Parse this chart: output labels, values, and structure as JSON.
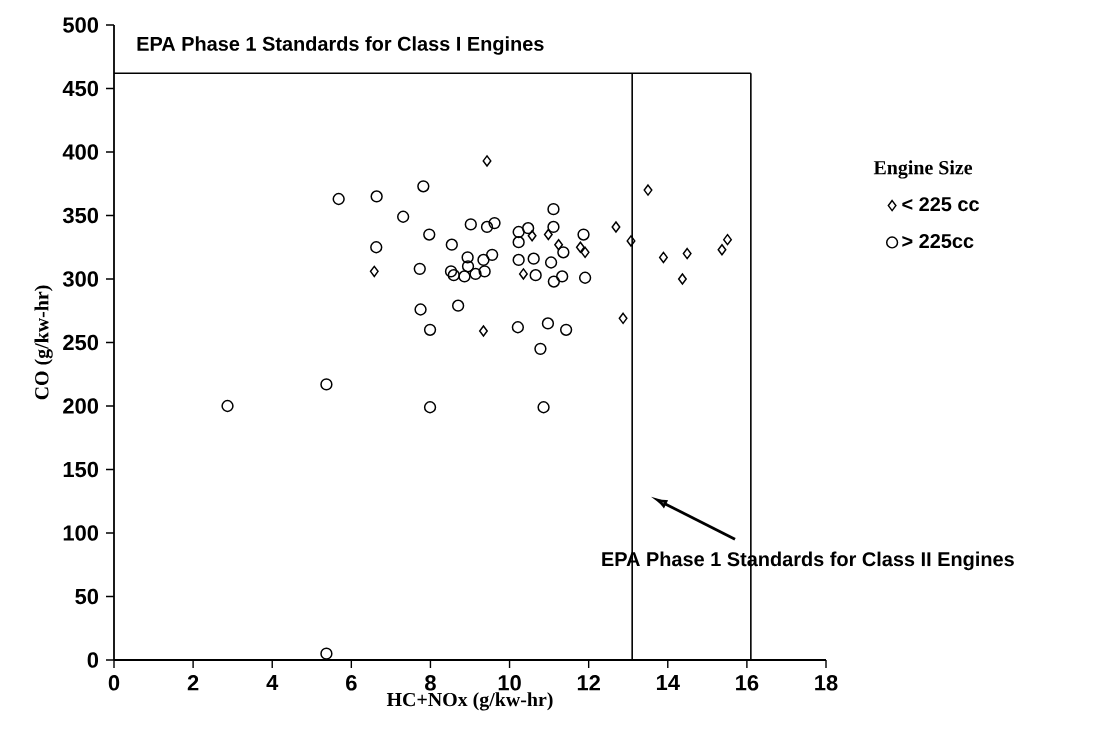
{
  "chart_data": {
    "type": "scatter",
    "xlabel": "HC+NOx (g/kw-hr)",
    "ylabel": "CO (g/kw-hr)",
    "legend_title": "Engine Size",
    "legend": "right",
    "xlim": [
      0,
      18
    ],
    "xticks": [
      0,
      2,
      4,
      6,
      8,
      10,
      12,
      14,
      16,
      18
    ],
    "ylim": [
      0,
      500
    ],
    "yticks": [
      0,
      50,
      100,
      150,
      200,
      250,
      300,
      350,
      400,
      450,
      500
    ],
    "grid": false,
    "series": [
      {
        "name": "< 225 cc",
        "color": "#000000",
        "marker": "diamond",
        "x": [
          9.43,
          13.5,
          12.69,
          13.07,
          13.89,
          14.49,
          14.37,
          15.37,
          15.51,
          12.87,
          6.58,
          9.34,
          10.57,
          10.98,
          11.24,
          10.35,
          11.79,
          11.91
        ],
        "values": [
          393,
          370,
          341,
          330,
          317,
          320,
          300,
          323,
          331,
          269,
          306,
          259,
          334,
          335,
          327,
          304,
          325,
          321
        ]
      },
      {
        "name": "> 225cc",
        "color": "#000000",
        "marker": "circle",
        "x": [
          2.87,
          5.37,
          5.37,
          5.68,
          6.64,
          6.63,
          7.31,
          7.82,
          7.97,
          7.73,
          7.75,
          7.99,
          7.99,
          8.54,
          8.7,
          8.52,
          8.59,
          8.86,
          8.94,
          8.95,
          9.14,
          9.37,
          9.34,
          9.56,
          9.02,
          9.43,
          9.62,
          10.23,
          10.23,
          10.47,
          10.23,
          10.61,
          10.66,
          10.21,
          10.97,
          10.78,
          10.86,
          11.11,
          11.11,
          11.05,
          11.12,
          11.33,
          11.36,
          11.43,
          11.87,
          11.91
        ],
        "values": [
          200,
          217,
          5,
          363,
          365,
          325,
          349,
          373,
          335,
          308,
          276,
          260,
          199,
          327,
          279,
          306,
          303,
          302,
          317,
          310,
          304,
          306,
          315,
          319,
          343,
          341,
          344,
          337,
          329,
          340,
          315,
          316,
          303,
          262,
          265,
          245,
          199,
          355,
          341,
          313,
          298,
          302,
          321,
          260,
          335,
          301
        ]
      }
    ],
    "ref_lines": [
      {
        "axis": "y",
        "value": 462,
        "label": "EPA Phase 1 Standards for Class I Engines"
      },
      {
        "axis": "x",
        "value": 16.1
      },
      {
        "axis": "x",
        "value": 13.1,
        "label": "EPA Phase 1 Standards for Class II Engines"
      }
    ]
  }
}
